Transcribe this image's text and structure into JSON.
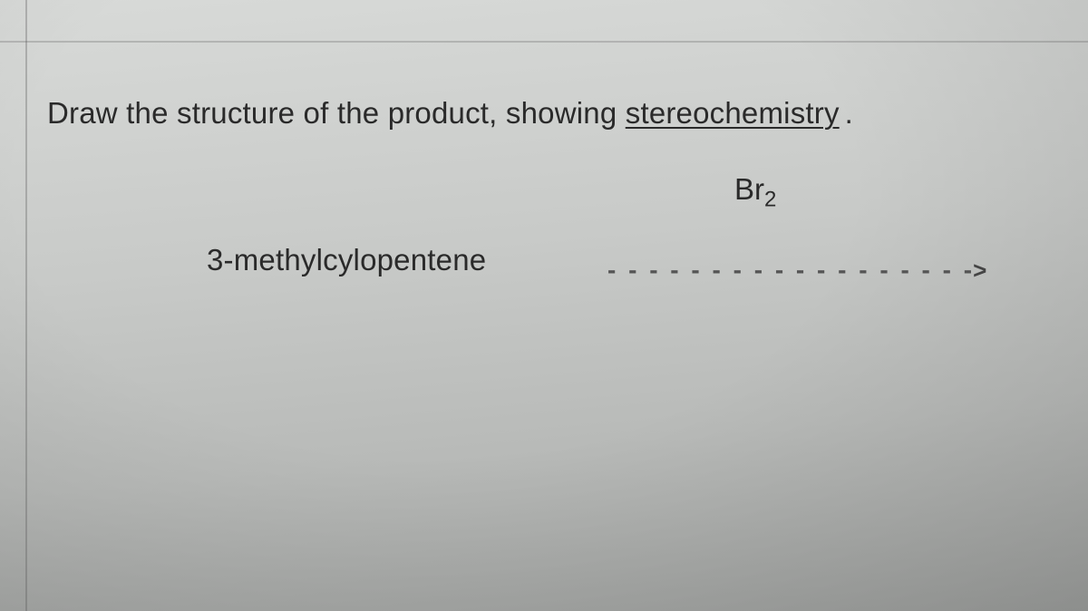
{
  "question": {
    "instruction_prefix": "Draw the structure of the product, showing ",
    "instruction_underlined": "stereochemistry",
    "instruction_period": ".",
    "compound_name": "3-methylcylopentene",
    "reagent_symbol": "Br",
    "reagent_subscript": "2",
    "arrow_dashes": "- - - - - - - - - - - - - - - - - -",
    "arrow_head": ">"
  },
  "style": {
    "text_color": "#2a2a2a",
    "background_gradient_start": "#d8dad8",
    "background_gradient_end": "#a0a2a0",
    "instruction_fontsize": 33,
    "compound_fontsize": 33,
    "reagent_fontsize": 33,
    "arrow_color": "#555",
    "font_family": "Arial, Helvetica, sans-serif"
  }
}
